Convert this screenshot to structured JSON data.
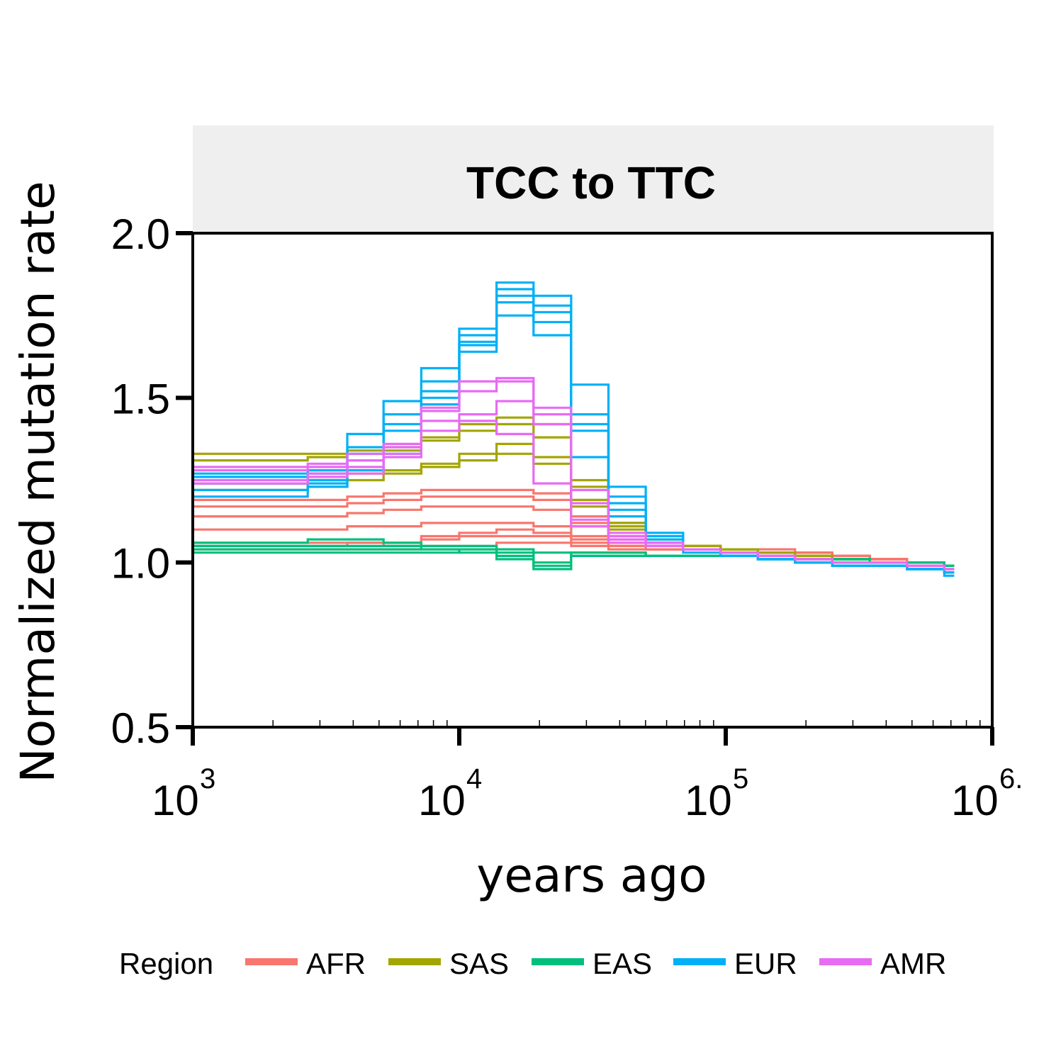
{
  "chart_data": {
    "type": "line",
    "step": true,
    "title": "TCC to TTC",
    "xlabel": "years ago",
    "ylabel": "Normalized mutation rate",
    "x_scale": "log10",
    "xlim": [
      1000,
      1000000
    ],
    "ylim": [
      0.5,
      2.0
    ],
    "y_ticks": [
      "0.5",
      "1.0",
      "1.5",
      "2.0"
    ],
    "x_ticks": [
      {
        "base": "10",
        "exp": "3"
      },
      {
        "base": "10",
        "exp": "4"
      },
      {
        "base": "10",
        "exp": "5"
      },
      {
        "base": "10",
        "exp": "6."
      }
    ],
    "legend": {
      "title": "Region",
      "position": "bottom",
      "entries": [
        {
          "label": "AFR",
          "color": "#F8766D"
        },
        {
          "label": "SAS",
          "color": "#A3A500"
        },
        {
          "label": "EAS",
          "color": "#00BF7D"
        },
        {
          "label": "EUR",
          "color": "#00B0F6"
        },
        {
          "label": "AMR",
          "color": "#E76BF3"
        }
      ]
    },
    "x_edges": [
      1000,
      2700,
      3800,
      5200,
      7200,
      10000,
      13800,
      19000,
      26300,
      36300,
      50100,
      69200,
      95600,
      132000,
      182000,
      251000,
      347000,
      479000,
      661000,
      720000
    ],
    "series": [
      {
        "region": "AFR",
        "values": [
          1.19,
          1.19,
          1.2,
          1.21,
          1.22,
          1.22,
          1.22,
          1.21,
          1.14,
          1.08,
          1.05,
          1.04,
          1.04,
          1.03,
          1.03,
          1.02,
          1.01,
          1.0,
          0.99
        ]
      },
      {
        "region": "AFR",
        "values": [
          1.17,
          1.17,
          1.18,
          1.19,
          1.2,
          1.2,
          1.2,
          1.19,
          1.12,
          1.07,
          1.05,
          1.04,
          1.04,
          1.04,
          1.03,
          1.02,
          1.01,
          1.0,
          0.99
        ]
      },
      {
        "region": "AFR",
        "values": [
          1.14,
          1.14,
          1.15,
          1.16,
          1.17,
          1.17,
          1.17,
          1.16,
          1.11,
          1.07,
          1.05,
          1.04,
          1.04,
          1.03,
          1.03,
          1.02,
          1.01,
          1.0,
          0.99
        ]
      },
      {
        "region": "AFR",
        "values": [
          1.1,
          1.1,
          1.11,
          1.11,
          1.12,
          1.12,
          1.12,
          1.11,
          1.08,
          1.06,
          1.04,
          1.04,
          1.04,
          1.03,
          1.03,
          1.02,
          1.01,
          1.0,
          0.99
        ]
      },
      {
        "region": "AFR",
        "values": [
          1.05,
          1.05,
          1.06,
          1.06,
          1.08,
          1.09,
          1.1,
          1.09,
          1.07,
          1.05,
          1.04,
          1.04,
          1.03,
          1.03,
          1.03,
          1.02,
          1.01,
          1.0,
          0.99
        ]
      },
      {
        "region": "AFR",
        "values": [
          1.06,
          1.06,
          1.06,
          1.05,
          1.07,
          1.08,
          1.08,
          1.08,
          1.06,
          1.05,
          1.04,
          1.04,
          1.03,
          1.03,
          1.03,
          1.02,
          1.01,
          1.0,
          0.99
        ]
      },
      {
        "region": "AFR",
        "values": [
          1.04,
          1.04,
          1.04,
          1.04,
          1.05,
          1.05,
          1.06,
          1.06,
          1.05,
          1.04,
          1.04,
          1.04,
          1.03,
          1.03,
          1.03,
          1.02,
          1.01,
          1.0,
          0.99
        ]
      },
      {
        "region": "SAS",
        "values": [
          1.33,
          1.33,
          1.34,
          1.35,
          1.38,
          1.42,
          1.44,
          1.42,
          1.25,
          1.12,
          1.07,
          1.05,
          1.04,
          1.03,
          1.02,
          1.01,
          1.0,
          1.0,
          0.99
        ]
      },
      {
        "region": "SAS",
        "values": [
          1.31,
          1.32,
          1.33,
          1.34,
          1.37,
          1.4,
          1.42,
          1.38,
          1.23,
          1.11,
          1.06,
          1.05,
          1.04,
          1.03,
          1.02,
          1.01,
          1.0,
          1.0,
          0.99
        ]
      },
      {
        "region": "SAS",
        "values": [
          1.24,
          1.25,
          1.27,
          1.28,
          1.3,
          1.33,
          1.36,
          1.32,
          1.19,
          1.12,
          1.06,
          1.05,
          1.04,
          1.03,
          1.02,
          1.01,
          1.0,
          1.0,
          0.99
        ]
      },
      {
        "region": "SAS",
        "values": [
          1.22,
          1.23,
          1.25,
          1.27,
          1.29,
          1.31,
          1.33,
          1.3,
          1.17,
          1.1,
          1.06,
          1.05,
          1.04,
          1.03,
          1.02,
          1.01,
          1.0,
          1.0,
          0.99
        ]
      },
      {
        "region": "EAS",
        "values": [
          1.06,
          1.07,
          1.07,
          1.06,
          1.05,
          1.05,
          1.04,
          1.03,
          1.03,
          1.03,
          1.02,
          1.02,
          1.02,
          1.02,
          1.01,
          1.01,
          1.0,
          1.0,
          0.99
        ]
      },
      {
        "region": "EAS",
        "values": [
          1.05,
          1.05,
          1.05,
          1.05,
          1.04,
          1.04,
          1.03,
          0.99,
          1.02,
          1.02,
          1.02,
          1.02,
          1.02,
          1.02,
          1.01,
          1.01,
          1.0,
          1.0,
          0.99
        ]
      },
      {
        "region": "EAS",
        "values": [
          1.04,
          1.04,
          1.04,
          1.04,
          1.04,
          1.03,
          1.02,
          0.98,
          1.02,
          1.02,
          1.02,
          1.02,
          1.02,
          1.02,
          1.01,
          1.01,
          1.0,
          1.0,
          0.99
        ]
      },
      {
        "region": "EAS",
        "values": [
          1.03,
          1.03,
          1.03,
          1.03,
          1.03,
          1.04,
          1.01,
          1.0,
          1.03,
          1.03,
          1.02,
          1.02,
          1.02,
          1.02,
          1.01,
          1.01,
          1.0,
          1.0,
          0.99
        ]
      },
      {
        "region": "EUR",
        "values": [
          1.27,
          1.28,
          1.39,
          1.49,
          1.59,
          1.71,
          1.85,
          1.81,
          1.54,
          1.23,
          1.09,
          1.04,
          1.02,
          1.01,
          1.0,
          0.99,
          0.99,
          0.98,
          0.96
        ]
      },
      {
        "region": "EUR",
        "values": [
          1.26,
          1.27,
          1.35,
          1.45,
          1.55,
          1.69,
          1.83,
          1.78,
          1.45,
          1.2,
          1.08,
          1.04,
          1.02,
          1.01,
          1.0,
          0.99,
          0.99,
          0.98,
          0.97
        ]
      },
      {
        "region": "EUR",
        "values": [
          1.24,
          1.25,
          1.33,
          1.42,
          1.52,
          1.67,
          1.81,
          1.76,
          1.42,
          1.18,
          1.07,
          1.04,
          1.02,
          1.01,
          1.0,
          0.99,
          0.99,
          0.98,
          0.97
        ]
      },
      {
        "region": "EUR",
        "values": [
          1.22,
          1.24,
          1.31,
          1.4,
          1.5,
          1.66,
          1.79,
          1.73,
          1.4,
          1.16,
          1.06,
          1.04,
          1.02,
          1.01,
          1.0,
          0.99,
          0.99,
          0.98,
          0.97
        ]
      },
      {
        "region": "EUR",
        "values": [
          1.2,
          1.23,
          1.28,
          1.33,
          1.48,
          1.64,
          1.75,
          1.69,
          1.32,
          1.14,
          1.05,
          1.03,
          1.02,
          1.01,
          1.0,
          0.99,
          0.99,
          0.98,
          0.97
        ]
      },
      {
        "region": "AMR",
        "values": [
          1.29,
          1.3,
          1.33,
          1.36,
          1.47,
          1.55,
          1.56,
          1.47,
          1.22,
          1.09,
          1.06,
          1.04,
          1.03,
          1.02,
          1.01,
          1.0,
          1.0,
          0.99,
          0.98
        ]
      },
      {
        "region": "AMR",
        "values": [
          1.28,
          1.29,
          1.31,
          1.35,
          1.46,
          1.52,
          1.55,
          1.45,
          1.18,
          1.08,
          1.06,
          1.04,
          1.03,
          1.02,
          1.01,
          1.0,
          1.0,
          0.99,
          0.98
        ]
      },
      {
        "region": "AMR",
        "values": [
          1.25,
          1.27,
          1.29,
          1.33,
          1.43,
          1.45,
          1.49,
          1.42,
          1.13,
          1.07,
          1.05,
          1.04,
          1.03,
          1.02,
          1.01,
          1.0,
          1.0,
          0.99,
          0.98
        ]
      },
      {
        "region": "AMR",
        "values": [
          1.24,
          1.26,
          1.27,
          1.32,
          1.4,
          1.43,
          1.39,
          1.24,
          1.11,
          1.06,
          1.05,
          1.04,
          1.03,
          1.02,
          1.01,
          1.0,
          1.0,
          0.99,
          0.98
        ]
      }
    ]
  }
}
